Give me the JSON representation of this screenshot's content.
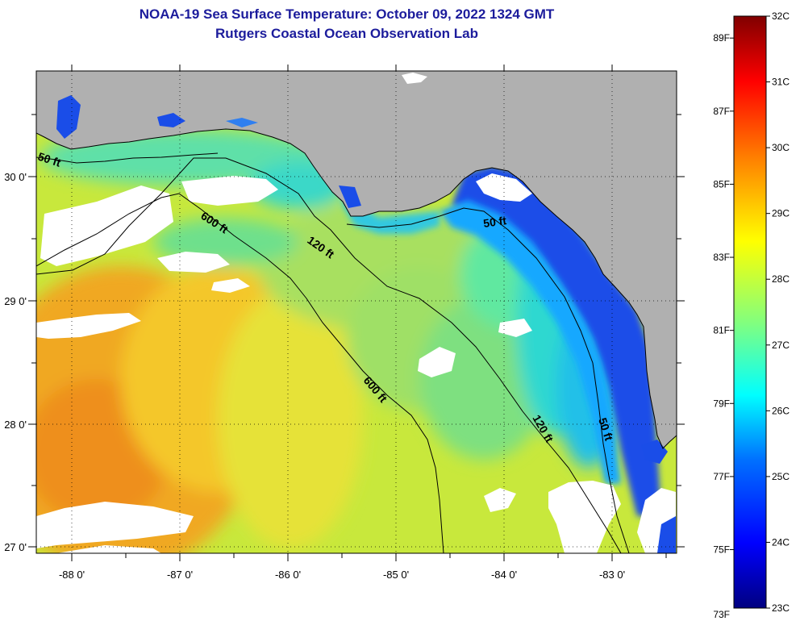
{
  "header": {
    "title": "NOAA-19 Sea Surface Temperature:  October 09, 2022 1324 GMT",
    "subtitle": "Rutgers Coastal Ocean Observation Lab"
  },
  "map": {
    "lon_range": [
      -88.33,
      -82.5
    ],
    "lat_range": [
      26.97,
      30.85
    ],
    "lon_ticks": [
      "-88 0'",
      "-87 0'",
      "-86 0'",
      "-85 0'",
      "-84 0'",
      "-83 0'"
    ],
    "lat_ticks": [
      "30 0'",
      "29 0'",
      "28 0'",
      "27 0'"
    ],
    "land_color": "#b0b0b0",
    "cloud_color": "#ffffff",
    "grid": "dotted",
    "contours": [
      {
        "label": "50 ft"
      },
      {
        "label": "50 ft"
      },
      {
        "label": "50 ft"
      },
      {
        "label": "120 ft"
      },
      {
        "label": "120 ft"
      },
      {
        "label": "600 ft"
      },
      {
        "label": "600 ft"
      }
    ]
  },
  "colorbar": {
    "fahrenheit_labels": [
      "89F",
      "87F",
      "85F",
      "83F",
      "81F",
      "79F",
      "77F",
      "75F",
      "73F"
    ],
    "celsius_labels": [
      "32C",
      "31C",
      "30C",
      "29C",
      "28C",
      "27C",
      "26C",
      "25C",
      "24C",
      "23C"
    ],
    "range_c": [
      23,
      32
    ],
    "colors": [
      "#000080",
      "#0000ff",
      "#0080ff",
      "#00ffff",
      "#80ff80",
      "#ffff00",
      "#ff8000",
      "#ff0000",
      "#800000"
    ]
  }
}
